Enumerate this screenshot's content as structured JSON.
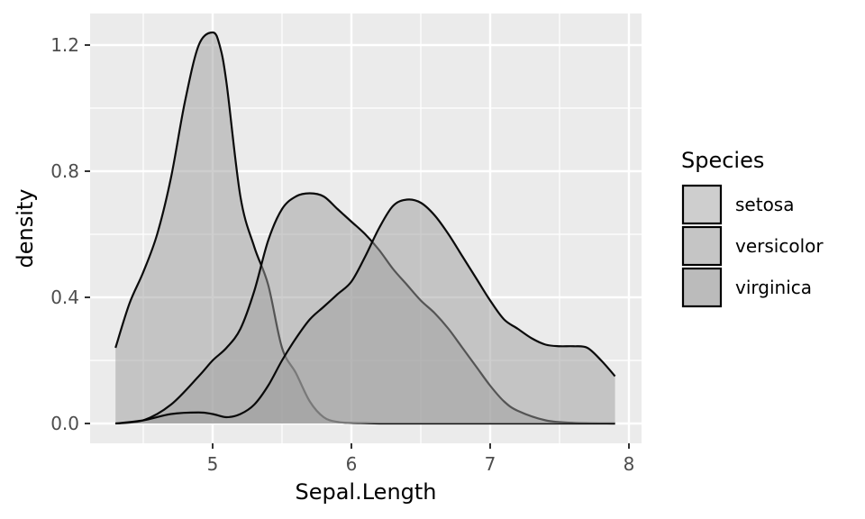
{
  "chart_data": {
    "type": "area",
    "xlabel": "Sepal.Length",
    "ylabel": "density",
    "xlim": [
      4.3,
      7.9
    ],
    "ylim": [
      0.0,
      1.24
    ],
    "x_ticks": [
      5,
      6,
      7,
      8
    ],
    "x_tick_labels": [
      "5",
      "6",
      "7",
      "8"
    ],
    "y_ticks": [
      0.0,
      0.4,
      0.8,
      1.2
    ],
    "y_tick_labels": [
      "0.0",
      "0.4",
      "0.8",
      "1.2"
    ],
    "grid": true,
    "legend": {
      "title": "Species",
      "position": "right",
      "entries": [
        "setosa",
        "versicolor",
        "virginica"
      ]
    },
    "colors": {
      "panel_background": "#ebebeb",
      "grid_line": "#ffffff",
      "area_fill": "#9e9e9e",
      "outline": "#000000"
    },
    "series": [
      {
        "name": "setosa",
        "x": [
          4.3,
          4.4,
          4.5,
          4.6,
          4.7,
          4.8,
          4.9,
          5.0,
          5.05,
          5.1,
          5.2,
          5.3,
          5.4,
          5.5,
          5.6,
          5.7,
          5.8,
          5.9,
          6.0,
          6.1,
          6.2,
          6.4,
          6.6,
          6.8,
          7.0,
          7.2,
          7.4,
          7.6,
          7.9
        ],
        "y": [
          0.24,
          0.38,
          0.48,
          0.6,
          0.78,
          1.02,
          1.2,
          1.24,
          1.2,
          1.08,
          0.72,
          0.56,
          0.44,
          0.24,
          0.16,
          0.07,
          0.02,
          0.005,
          0.002,
          0.001,
          0.0,
          0.0,
          0.0,
          0.0,
          0.0,
          0.0,
          0.0,
          0.0,
          0.0
        ]
      },
      {
        "name": "versicolor",
        "x": [
          4.3,
          4.5,
          4.7,
          4.9,
          5.0,
          5.1,
          5.2,
          5.3,
          5.4,
          5.5,
          5.6,
          5.7,
          5.8,
          5.9,
          6.0,
          6.1,
          6.2,
          6.3,
          6.4,
          6.5,
          6.6,
          6.7,
          6.8,
          6.9,
          7.0,
          7.1,
          7.2,
          7.4,
          7.6,
          7.9
        ],
        "y": [
          0.0,
          0.01,
          0.06,
          0.15,
          0.2,
          0.24,
          0.3,
          0.42,
          0.58,
          0.68,
          0.72,
          0.73,
          0.72,
          0.68,
          0.64,
          0.6,
          0.55,
          0.49,
          0.44,
          0.39,
          0.35,
          0.3,
          0.24,
          0.18,
          0.12,
          0.07,
          0.04,
          0.01,
          0.002,
          0.0
        ]
      },
      {
        "name": "virginica",
        "x": [
          4.3,
          4.5,
          4.7,
          4.9,
          5.0,
          5.1,
          5.2,
          5.3,
          5.4,
          5.5,
          5.6,
          5.7,
          5.8,
          5.9,
          6.0,
          6.1,
          6.2,
          6.3,
          6.4,
          6.5,
          6.6,
          6.7,
          6.8,
          6.9,
          7.0,
          7.1,
          7.2,
          7.3,
          7.4,
          7.5,
          7.6,
          7.7,
          7.8,
          7.9
        ],
        "y": [
          0.0,
          0.01,
          0.03,
          0.035,
          0.03,
          0.02,
          0.03,
          0.06,
          0.12,
          0.2,
          0.27,
          0.33,
          0.37,
          0.41,
          0.45,
          0.53,
          0.62,
          0.69,
          0.71,
          0.7,
          0.66,
          0.6,
          0.53,
          0.46,
          0.39,
          0.33,
          0.3,
          0.27,
          0.25,
          0.245,
          0.245,
          0.24,
          0.2,
          0.15
        ]
      }
    ]
  }
}
